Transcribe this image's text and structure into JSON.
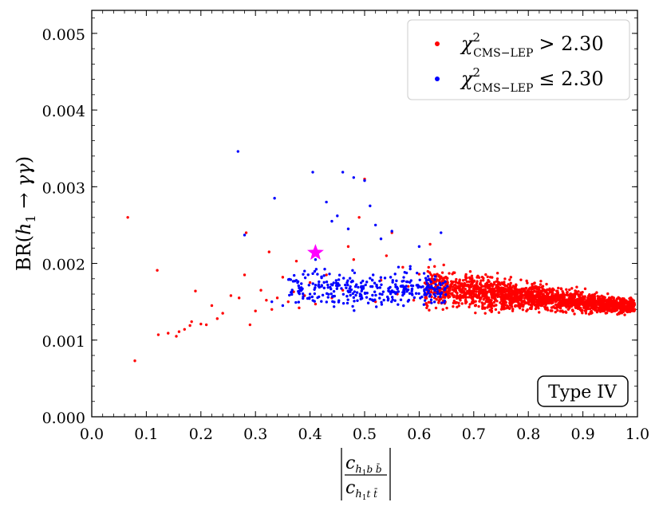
{
  "chart_data": {
    "type": "scatter",
    "xlim": [
      0.0,
      1.0
    ],
    "ylim": [
      0.0,
      0.0053
    ],
    "x_ticks": [
      0.0,
      0.1,
      0.2,
      0.3,
      0.4,
      0.5,
      0.6,
      0.7,
      0.8,
      0.9,
      1.0
    ],
    "x_tick_labels": [
      "0.0",
      "0.1",
      "0.2",
      "0.3",
      "0.4",
      "0.5",
      "0.6",
      "0.7",
      "0.8",
      "0.9",
      "1.0"
    ],
    "y_ticks": [
      0.0,
      0.001,
      0.002,
      0.003,
      0.004,
      0.005
    ],
    "y_tick_labels": [
      "0.000",
      "0.001",
      "0.002",
      "0.003",
      "0.004",
      "0.005"
    ],
    "ylabel": {
      "prefix": "BR(",
      "h": "h",
      "sub": "1",
      "arrow": " → ",
      "gg": "γγ",
      "suffix": ")"
    },
    "xlabel": {
      "num_c": "c",
      "num_sub_h": "h",
      "num_sub_1": "1",
      "num_sub_rest": "b b̄",
      "den_c": "c",
      "den_sub_h": "h",
      "den_sub_1": "1",
      "den_sub_rest": "t t̄"
    },
    "legend": [
      {
        "chi": "χ",
        "sup": "2",
        "sub": "CMS−LEP",
        "cond": "> 2.30",
        "color": "#ff0000"
      },
      {
        "chi": "χ",
        "sup": "2",
        "sub": "CMS−LEP",
        "cond": "≤ 2.30",
        "color": "#0000ff"
      }
    ],
    "annotation": "Type IV",
    "benchmark_point": {
      "x": 0.41,
      "y": 0.00214,
      "color": "#ff00ff",
      "marker": "star"
    },
    "series": [
      {
        "name": "chi2 > 2.30",
        "color": "#ff0000",
        "points": [
          [
            0.066,
            0.0026
          ],
          [
            0.079,
            0.00073
          ],
          [
            0.12,
            0.00191
          ],
          [
            0.122,
            0.00107
          ],
          [
            0.14,
            0.00109
          ],
          [
            0.155,
            0.00105
          ],
          [
            0.16,
            0.00111
          ],
          [
            0.17,
            0.00114
          ],
          [
            0.18,
            0.00119
          ],
          [
            0.183,
            0.00124
          ],
          [
            0.19,
            0.00164
          ],
          [
            0.2,
            0.00121
          ],
          [
            0.21,
            0.0012
          ],
          [
            0.22,
            0.00145
          ],
          [
            0.23,
            0.00128
          ],
          [
            0.24,
            0.00135
          ],
          [
            0.255,
            0.00158
          ],
          [
            0.27,
            0.00155
          ],
          [
            0.28,
            0.00185
          ],
          [
            0.283,
            0.0024
          ],
          [
            0.29,
            0.0012
          ],
          [
            0.3,
            0.00138
          ],
          [
            0.31,
            0.00165
          ],
          [
            0.32,
            0.00152
          ],
          [
            0.325,
            0.00215
          ],
          [
            0.33,
            0.0014
          ],
          [
            0.34,
            0.00155
          ],
          [
            0.35,
            0.00182
          ],
          [
            0.36,
            0.0015
          ],
          [
            0.37,
            0.00163
          ],
          [
            0.375,
            0.00203
          ],
          [
            0.38,
            0.00142
          ],
          [
            0.39,
            0.00158
          ],
          [
            0.4,
            0.00175
          ],
          [
            0.41,
            0.00147
          ],
          [
            0.43,
            0.00185
          ],
          [
            0.44,
            0.00155
          ],
          [
            0.45,
            0.00172
          ],
          [
            0.46,
            0.00165
          ],
          [
            0.47,
            0.00222
          ],
          [
            0.48,
            0.00205
          ],
          [
            0.49,
            0.0026
          ],
          [
            0.5,
            0.0031
          ],
          [
            0.52,
            0.0015
          ],
          [
            0.53,
            0.00178
          ],
          [
            0.54,
            0.0021
          ],
          [
            0.55,
            0.0024
          ],
          [
            0.56,
            0.0016
          ],
          [
            0.57,
            0.00195
          ],
          [
            0.58,
            0.0017
          ],
          [
            0.59,
            0.00152
          ],
          [
            0.6,
            0.00186
          ],
          [
            0.61,
            0.0016
          ],
          [
            0.62,
            0.00225
          ],
          [
            0.63,
            0.00168
          ],
          [
            0.64,
            0.00172
          ],
          [
            0.645,
            0.00198
          ],
          [
            0.655,
            0.00187
          ]
        ],
        "cloud": {
          "x_from": 0.61,
          "x_to": 0.995,
          "y_center_start": 0.00168,
          "y_center_end": 0.00144,
          "spread_start": 0.00022,
          "spread_end": 8e-05,
          "count": 2000
        }
      },
      {
        "name": "chi2 <= 2.30",
        "color": "#0000ff",
        "points": [
          [
            0.268,
            0.00346
          ],
          [
            0.28,
            0.00237
          ],
          [
            0.335,
            0.00285
          ],
          [
            0.405,
            0.00319
          ],
          [
            0.46,
            0.00319
          ],
          [
            0.48,
            0.00312
          ],
          [
            0.43,
            0.0028
          ],
          [
            0.45,
            0.00262
          ],
          [
            0.5,
            0.00308
          ],
          [
            0.51,
            0.00275
          ],
          [
            0.52,
            0.0025
          ],
          [
            0.53,
            0.00232
          ],
          [
            0.47,
            0.00245
          ],
          [
            0.44,
            0.00255
          ],
          [
            0.55,
            0.00242
          ],
          [
            0.6,
            0.00222
          ],
          [
            0.62,
            0.00205
          ],
          [
            0.64,
            0.0024
          ],
          [
            0.33,
            0.0015
          ],
          [
            0.35,
            0.00145
          ],
          [
            0.38,
            0.00168
          ],
          [
            0.39,
            0.0019
          ],
          [
            0.4,
            0.0016
          ],
          [
            0.41,
            0.00205
          ]
        ],
        "cloud": {
          "x_from": 0.36,
          "x_to": 0.655,
          "y_center_start": 0.00168,
          "y_center_end": 0.00166,
          "spread_start": 0.00021,
          "spread_end": 0.00018,
          "count": 340
        }
      }
    ]
  }
}
